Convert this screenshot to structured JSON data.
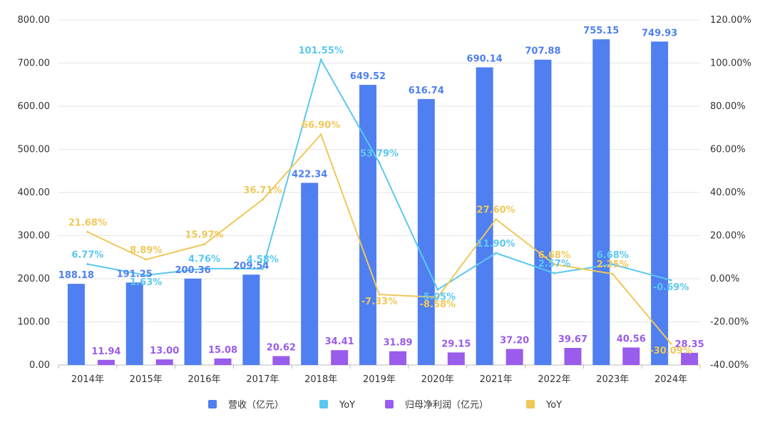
{
  "chart_data": {
    "type": "bar+line",
    "categories": [
      "2014年",
      "2015年",
      "2016年",
      "2017年",
      "2018年",
      "2019年",
      "2020年",
      "2021年",
      "2022年",
      "2023年",
      "2024年"
    ],
    "left_axis": {
      "min": 0,
      "max": 800,
      "ticks": [
        "0.00",
        "100.00",
        "200.00",
        "300.00",
        "400.00",
        "500.00",
        "600.00",
        "700.00",
        "800.00"
      ]
    },
    "right_axis": {
      "min": -40,
      "max": 120,
      "ticks": [
        "-40.00%",
        "-20.00%",
        "0.00%",
        "20.00%",
        "40.00%",
        "60.00%",
        "80.00%",
        "100.00%",
        "120.00%"
      ]
    },
    "series": [
      {
        "name": "营收（亿元）",
        "type": "bar",
        "axis": "left",
        "color": "#4F7FF0",
        "values": [
          188.18,
          191.25,
          200.36,
          209.54,
          422.34,
          649.52,
          616.74,
          690.14,
          707.88,
          755.15,
          749.93
        ],
        "labels": [
          "188.18",
          "191.25",
          "200.36",
          "209.54",
          "422.34",
          "649.52",
          "616.74",
          "690.14",
          "707.88",
          "755.15",
          "749.93"
        ]
      },
      {
        "name": "YoY",
        "type": "line",
        "axis": "right",
        "color": "#5BC8F0",
        "values": [
          6.77,
          1.63,
          4.76,
          4.58,
          101.55,
          53.79,
          -5.05,
          11.9,
          2.57,
          6.68,
          -0.69
        ],
        "labels": [
          "6.77%",
          "1.63%",
          "4.76%",
          "4.58%",
          "101.55%",
          "53.79%",
          "-5.05%",
          "11.90%",
          "2.57%",
          "6.68%",
          "-0.69%"
        ]
      },
      {
        "name": "归母净利润（亿元）",
        "type": "bar",
        "axis": "left",
        "color": "#9A5CEB",
        "values": [
          11.94,
          13.0,
          15.08,
          20.62,
          34.41,
          31.89,
          29.15,
          37.2,
          39.67,
          40.56,
          28.35
        ],
        "labels": [
          "11.94",
          "13.00",
          "15.08",
          "20.62",
          "34.41",
          "31.89",
          "29.15",
          "37.20",
          "39.67",
          "40.56",
          "28.35"
        ]
      },
      {
        "name": "YoY",
        "type": "line",
        "axis": "right",
        "color": "#F0C85A",
        "values": [
          21.68,
          8.89,
          15.97,
          36.71,
          66.9,
          -7.33,
          -8.58,
          27.6,
          6.68,
          2.25,
          -30.09
        ],
        "labels": [
          "21.68%",
          "8.89%",
          "15.97%",
          "36.71%",
          "66.90%",
          "-7.33%",
          "-8.58%",
          "27.60%",
          "6.68%",
          "2.25%",
          "-30.09%"
        ]
      }
    ],
    "legend_position": "bottom",
    "grid": true
  }
}
